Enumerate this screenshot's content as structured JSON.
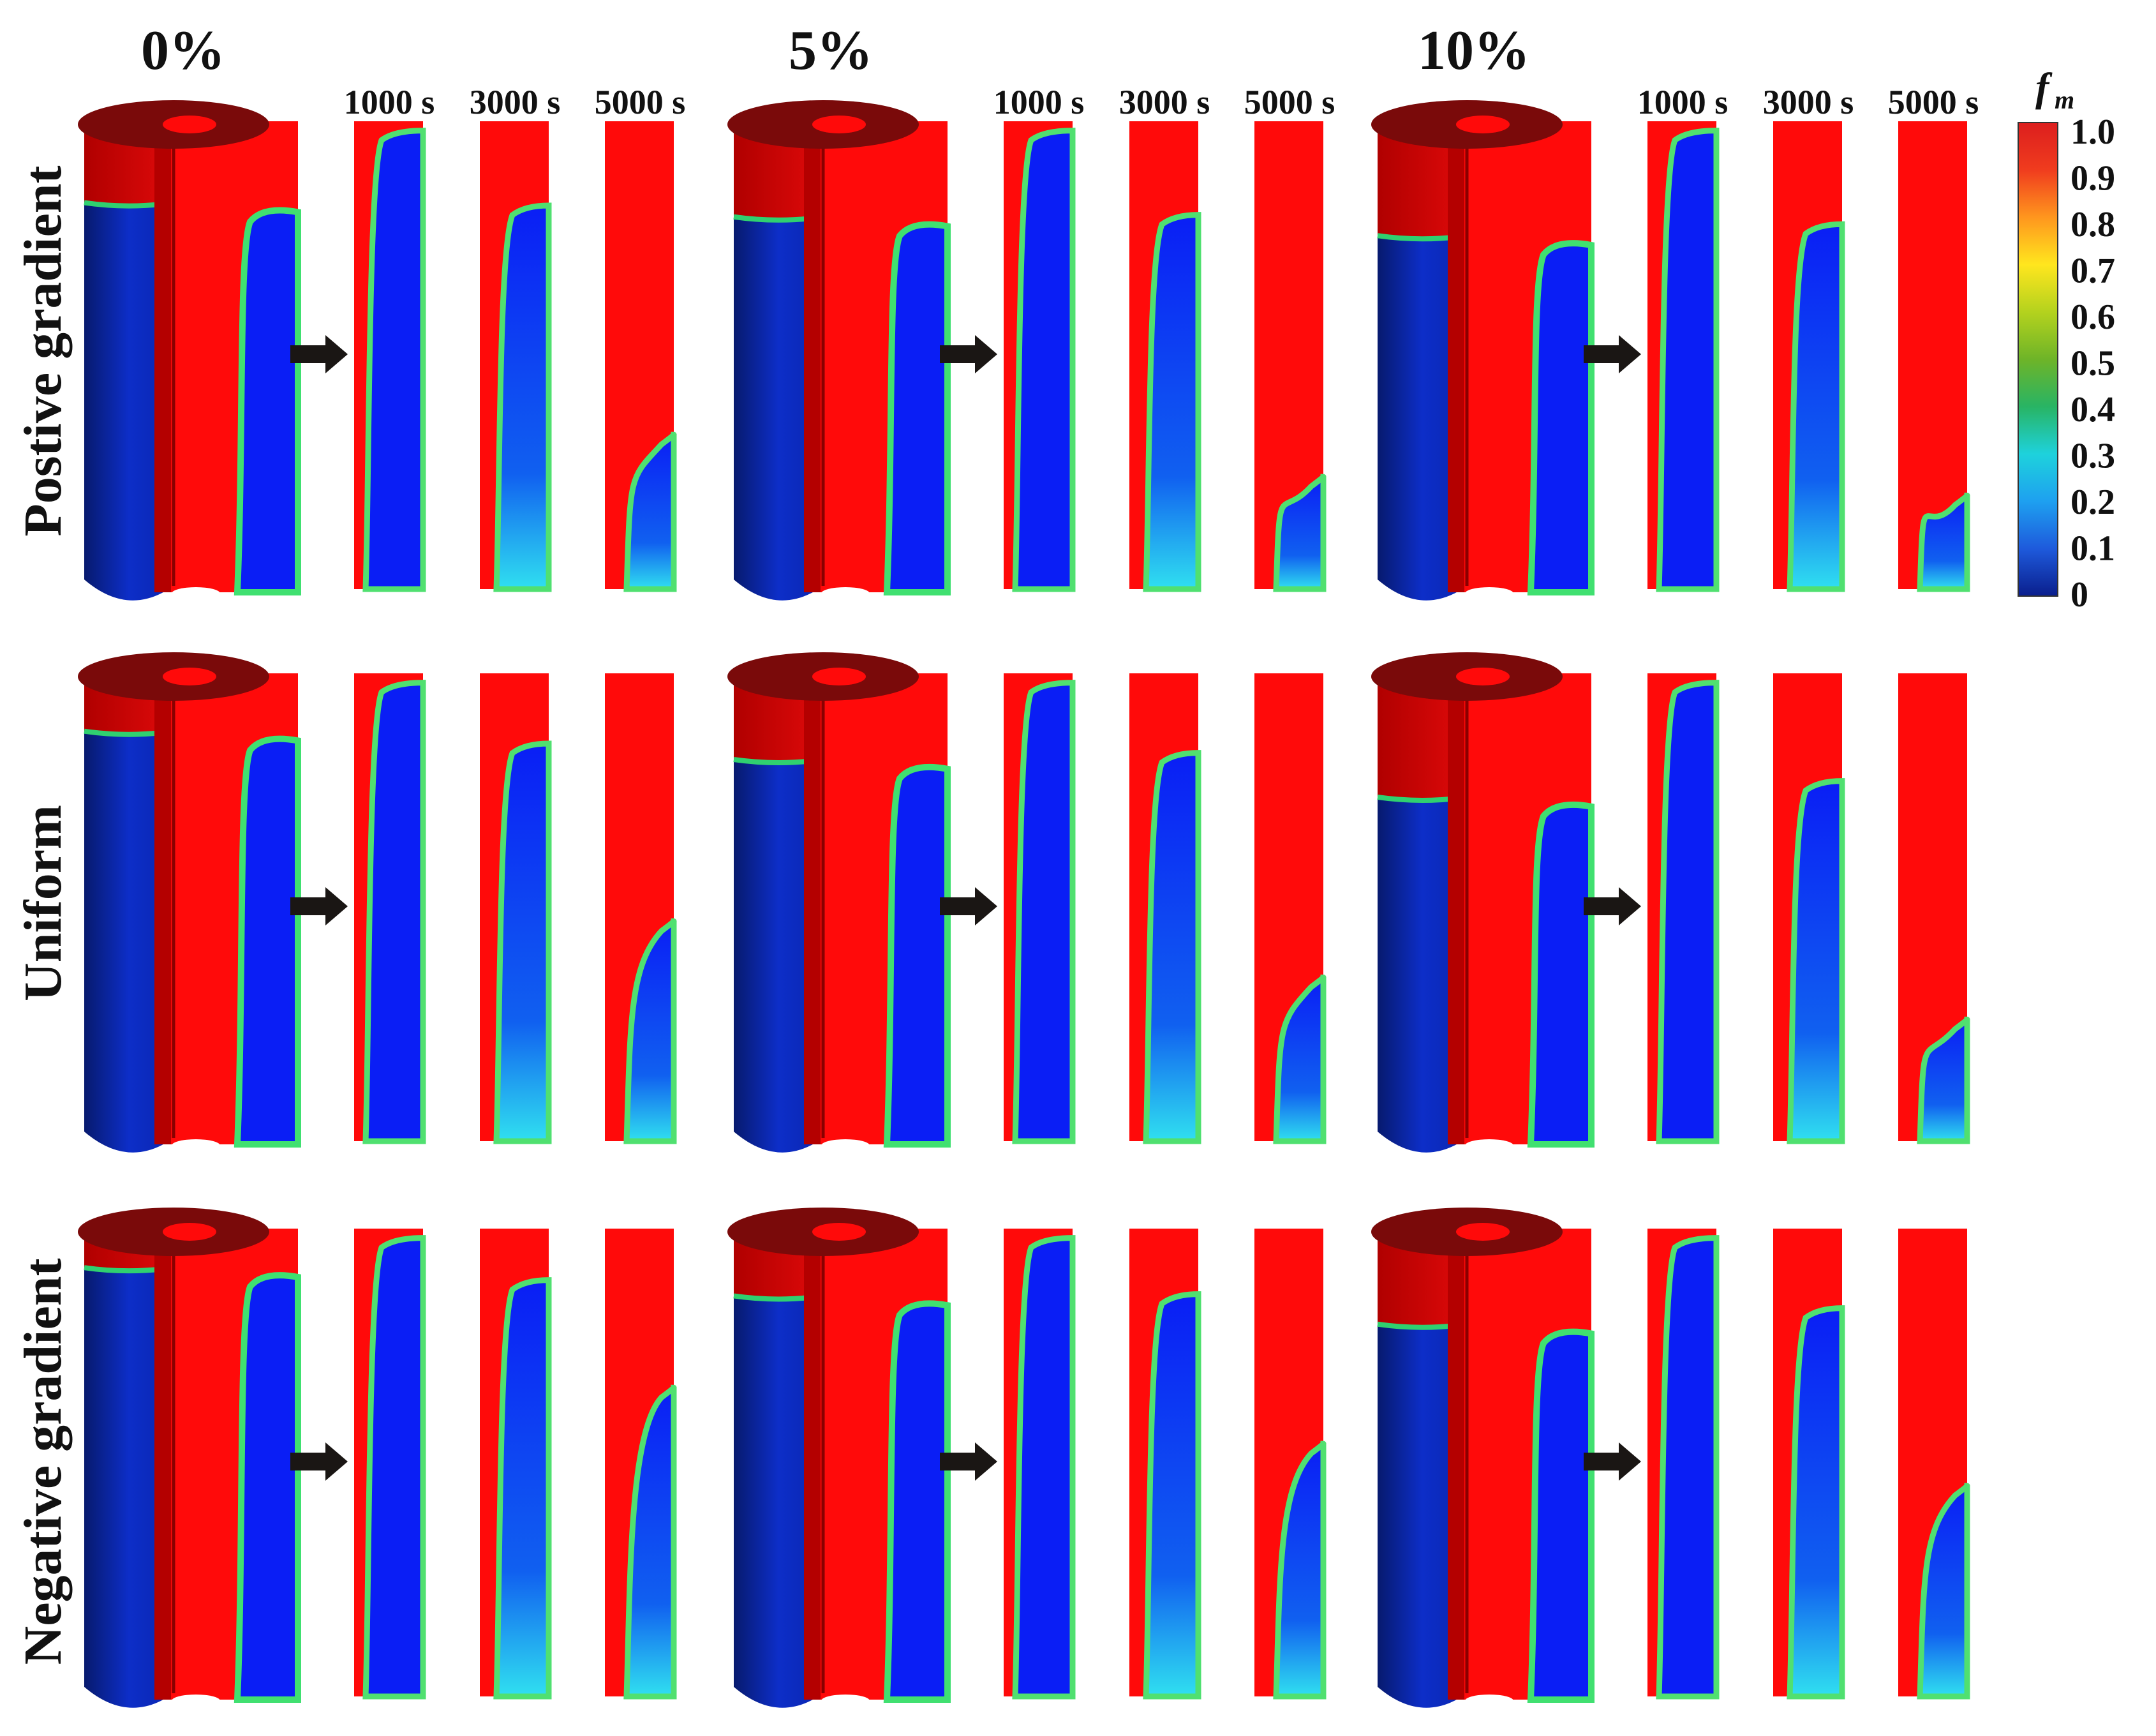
{
  "columns": [
    {
      "label": "0%",
      "key": "p0"
    },
    {
      "label": "5%",
      "key": "p5"
    },
    {
      "label": "10%",
      "key": "p10"
    }
  ],
  "rows": [
    {
      "label": "Postive gradient"
    },
    {
      "label": "Uniform"
    },
    {
      "label": "Negative gradient"
    }
  ],
  "times": [
    "1000 s",
    "3000 s",
    "5000 s"
  ],
  "colorbar": {
    "symbol": "f",
    "subscript": "m",
    "ticks": [
      "1.0",
      "0.9",
      "0.8",
      "0.7",
      "0.6",
      "0.5",
      "0.4",
      "0.3",
      "0.2",
      "0.1",
      "0"
    ],
    "colors": [
      "#0a1e8c",
      "#1e5adc",
      "#1ea0f0",
      "#1ed2dc",
      "#28b464",
      "#6eb428",
      "#b4d21e",
      "#ffe61e",
      "#ff961e",
      "#f03c1e",
      "#dc1e1e"
    ]
  },
  "colors": {
    "melted": "#ff0a0a",
    "solid": "#0a1ef5",
    "dark_red": "#b40000",
    "cylinder_top": "#7a0a0a",
    "solid_dark": "#0a2a9a",
    "arrow": "#1a1614"
  }
}
